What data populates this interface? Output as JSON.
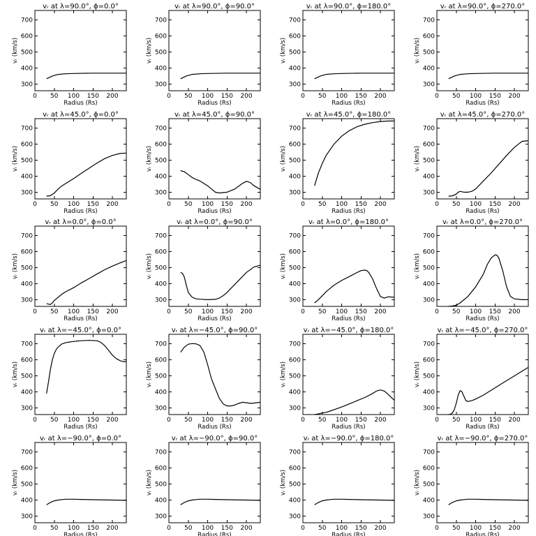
{
  "chart_data": {
    "type": "line",
    "xlabel": "Radius (Rs)",
    "ylabel": "vᵣ (km/s)",
    "xlim": [
      0,
      236
    ],
    "ylim": [
      258,
      760
    ],
    "xticks": [
      0,
      50,
      100,
      150,
      200
    ],
    "yticks": [
      300,
      400,
      500,
      600,
      700
    ],
    "grid": false,
    "rows": 5,
    "cols": 4,
    "panels": [
      {
        "title": "vᵣ at λ=90.0°, ϕ=0.0°",
        "x": [
          30,
          45,
          60,
          80,
          100,
          150,
          200,
          236
        ],
        "y": [
          333,
          350,
          360,
          364,
          366,
          368,
          368,
          368
        ]
      },
      {
        "title": "vᵣ at λ=90.0°, ϕ=90.0°",
        "x": [
          30,
          45,
          60,
          80,
          100,
          150,
          200,
          236
        ],
        "y": [
          333,
          350,
          360,
          364,
          366,
          368,
          368,
          368
        ]
      },
      {
        "title": "vᵣ at λ=90.0°, ϕ=180.0°",
        "x": [
          30,
          45,
          60,
          80,
          100,
          150,
          200,
          236
        ],
        "y": [
          333,
          350,
          360,
          364,
          366,
          368,
          368,
          368
        ]
      },
      {
        "title": "vᵣ at λ=90.0°, ϕ=270.0°",
        "x": [
          30,
          45,
          60,
          80,
          100,
          150,
          200,
          236
        ],
        "y": [
          333,
          350,
          360,
          364,
          366,
          368,
          368,
          368
        ]
      },
      {
        "title": "vᵣ at λ=45.0°, ϕ=0.0°",
        "x": [
          30,
          40,
          50,
          60,
          70,
          80,
          100,
          120,
          140,
          160,
          180,
          200,
          220,
          236
        ],
        "y": [
          275,
          278,
          295,
          320,
          340,
          355,
          385,
          418,
          450,
          482,
          510,
          530,
          542,
          545
        ]
      },
      {
        "title": "vᵣ at λ=45.0°, ϕ=90.0°",
        "x": [
          30,
          40,
          50,
          60,
          70,
          80,
          100,
          120,
          130,
          150,
          170,
          190,
          200,
          210,
          220,
          236
        ],
        "y": [
          435,
          428,
          410,
          392,
          380,
          370,
          340,
          300,
          295,
          300,
          320,
          355,
          368,
          360,
          340,
          318
        ]
      },
      {
        "title": "vᵣ at λ=45.0°, ϕ=180.0°",
        "x": [
          30,
          40,
          50,
          60,
          70,
          80,
          100,
          120,
          140,
          160,
          180,
          200,
          220,
          236
        ],
        "y": [
          340,
          420,
          480,
          530,
          565,
          600,
          650,
          685,
          710,
          725,
          735,
          742,
          745,
          745
        ]
      },
      {
        "title": "vᵣ at λ=45.0°, ϕ=270.0°",
        "x": [
          30,
          40,
          50,
          55,
          60,
          70,
          80,
          90,
          100,
          120,
          140,
          160,
          180,
          200,
          210,
          220,
          236
        ],
        "y": [
          275,
          277,
          288,
          300,
          305,
          300,
          300,
          305,
          320,
          370,
          420,
          475,
          530,
          580,
          600,
          618,
          622
        ]
      },
      {
        "title": "vᵣ at λ=0.0°, ϕ=0.0°",
        "x": [
          30,
          40,
          45,
          50,
          60,
          70,
          80,
          100,
          120,
          140,
          160,
          180,
          200,
          220,
          236
        ],
        "y": [
          275,
          270,
          280,
          295,
          315,
          335,
          350,
          375,
          405,
          432,
          460,
          487,
          510,
          530,
          545
        ]
      },
      {
        "title": "vᵣ at λ=0.0°, ϕ=90.0°",
        "x": [
          30,
          35,
          40,
          45,
          50,
          60,
          70,
          80,
          100,
          120,
          130,
          140,
          150,
          160,
          180,
          200,
          220,
          236
        ],
        "y": [
          470,
          465,
          440,
          390,
          345,
          315,
          305,
          303,
          300,
          302,
          310,
          325,
          345,
          370,
          420,
          470,
          505,
          515
        ]
      },
      {
        "title": "vᵣ at λ=0.0°, ϕ=180.0°",
        "x": [
          30,
          40,
          50,
          60,
          70,
          80,
          100,
          120,
          140,
          150,
          160,
          165,
          170,
          180,
          190,
          200,
          210,
          220,
          236
        ],
        "y": [
          280,
          300,
          325,
          350,
          370,
          390,
          420,
          445,
          470,
          482,
          485,
          482,
          470,
          430,
          370,
          320,
          310,
          318,
          315
        ]
      },
      {
        "title": "vᵣ at λ=0.0°, ϕ=270.0°",
        "x": [
          30,
          40,
          50,
          60,
          70,
          80,
          100,
          120,
          130,
          140,
          150,
          155,
          160,
          170,
          180,
          190,
          200,
          220,
          236
        ],
        "y": [
          258,
          260,
          265,
          280,
          300,
          320,
          380,
          460,
          520,
          560,
          580,
          578,
          560,
          480,
          380,
          320,
          305,
          300,
          300
        ]
      },
      {
        "title": "vᵣ at λ=−45.0°, ϕ=0.0°",
        "x": [
          30,
          35,
          40,
          45,
          50,
          55,
          60,
          70,
          80,
          90,
          100,
          110,
          120,
          140,
          160,
          170,
          180,
          190,
          200,
          210,
          220,
          230,
          236
        ],
        "y": [
          390,
          460,
          540,
          600,
          640,
          665,
          680,
          700,
          708,
          712,
          715,
          718,
          720,
          722,
          720,
          710,
          690,
          660,
          630,
          608,
          595,
          588,
          590
        ]
      },
      {
        "title": "vᵣ at λ=−45.0°, ϕ=90.0°",
        "x": [
          30,
          40,
          50,
          60,
          70,
          80,
          90,
          100,
          110,
          120,
          130,
          140,
          150,
          160,
          170,
          180,
          190,
          200,
          210,
          220,
          236
        ],
        "y": [
          648,
          680,
          698,
          702,
          700,
          690,
          650,
          570,
          480,
          420,
          360,
          325,
          312,
          312,
          318,
          328,
          335,
          332,
          328,
          330,
          335
        ]
      },
      {
        "title": "vᵣ at λ=−45.0°, ϕ=180.0°",
        "x": [
          30,
          40,
          50,
          60,
          70,
          80,
          100,
          120,
          140,
          160,
          180,
          190,
          200,
          210,
          220,
          230,
          236
        ],
        "y": [
          258,
          262,
          268,
          272,
          280,
          288,
          305,
          325,
          345,
          365,
          390,
          405,
          412,
          405,
          385,
          360,
          348
        ]
      },
      {
        "title": "vᵣ at λ=−45.0°, ϕ=270.0°",
        "x": [
          30,
          35,
          40,
          45,
          50,
          55,
          60,
          65,
          70,
          75,
          80,
          90,
          100,
          120,
          140,
          160,
          180,
          200,
          220,
          236
        ],
        "y": [
          258,
          260,
          268,
          290,
          330,
          380,
          408,
          400,
          370,
          345,
          340,
          345,
          355,
          380,
          410,
          440,
          470,
          500,
          530,
          553
        ]
      },
      {
        "title": "vᵣ at λ=−90.0°, ϕ=0.0°",
        "x": [
          30,
          40,
          50,
          60,
          70,
          80,
          100,
          120,
          150,
          200,
          236
        ],
        "y": [
          370,
          385,
          395,
          400,
          403,
          405,
          405,
          404,
          402,
          400,
          398
        ]
      },
      {
        "title": "vᵣ at λ=−90.0°, ϕ=90.0°",
        "x": [
          30,
          40,
          50,
          60,
          70,
          80,
          100,
          120,
          150,
          200,
          236
        ],
        "y": [
          370,
          385,
          395,
          400,
          403,
          405,
          405,
          404,
          402,
          400,
          398
        ]
      },
      {
        "title": "vᵣ at λ=−90.0°, ϕ=180.0°",
        "x": [
          30,
          40,
          50,
          60,
          70,
          80,
          100,
          120,
          150,
          200,
          236
        ],
        "y": [
          370,
          385,
          395,
          400,
          403,
          405,
          405,
          404,
          402,
          400,
          398
        ]
      },
      {
        "title": "vᵣ at λ=−90.0°, ϕ=270.0°",
        "x": [
          30,
          40,
          50,
          60,
          70,
          80,
          100,
          120,
          150,
          200,
          236
        ],
        "y": [
          370,
          385,
          395,
          400,
          403,
          405,
          405,
          404,
          402,
          400,
          398
        ]
      }
    ]
  }
}
